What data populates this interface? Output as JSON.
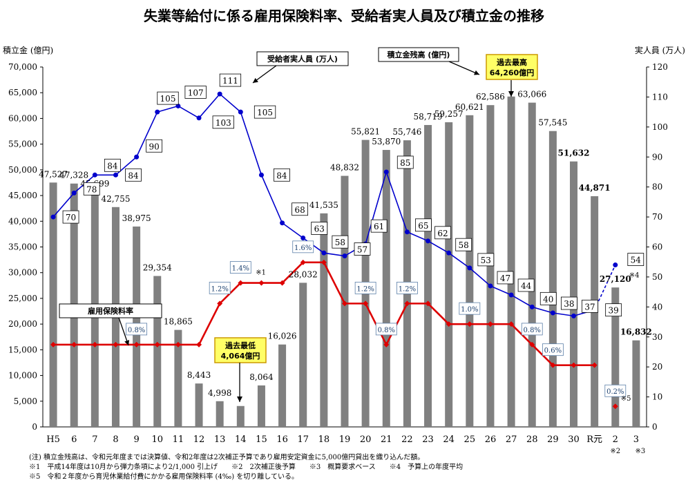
{
  "chart_data": {
    "type": "bar+line",
    "title": "失業等給付に係る雇用保険料率、受給者実人員及び積立金の推移",
    "categories": [
      "H5",
      "6",
      "7",
      "8",
      "9",
      "10",
      "11",
      "12",
      "13",
      "14",
      "15",
      "16",
      "17",
      "18",
      "19",
      "20",
      "21",
      "22",
      "23",
      "24",
      "25",
      "26",
      "27",
      "28",
      "29",
      "30",
      "R元",
      "2",
      "3"
    ],
    "y_left_label": "積立金 (億円)",
    "y_right_label": "実人員 (万人)",
    "y_left_ticks": [
      "0",
      "5,000",
      "10,000",
      "15,000",
      "20,000",
      "25,000",
      "30,000",
      "35,000",
      "40,000",
      "45,000",
      "50,000",
      "55,000",
      "60,000",
      "65,000",
      "70,000"
    ],
    "y_right_ticks": [
      "0",
      "10",
      "20",
      "30",
      "40",
      "50",
      "60",
      "70",
      "80",
      "90",
      "100",
      "110",
      "120"
    ],
    "ylim_left": [
      0,
      70000
    ],
    "ylim_right": [
      0,
      120
    ],
    "bar_values": [
      47527,
      47328,
      45699,
      42755,
      38975,
      29354,
      18865,
      8443,
      4998,
      4064,
      8064,
      16026,
      28032,
      41535,
      48832,
      55821,
      53870,
      55746,
      58719,
      59257,
      60621,
      62586,
      64260,
      63066,
      57545,
      51632,
      44871,
      27120,
      16832
    ],
    "bar_labels": [
      "47,527",
      "47,328",
      "45,699",
      "42,755",
      "38,975",
      "29,354",
      "18,865",
      "8,443",
      "4,998",
      "",
      "8,064",
      "16,026",
      "28,032",
      "41,535",
      "48,832",
      "55,821",
      "53,870",
      "55,746",
      "58,719",
      "59,257",
      "60,621",
      "62,586",
      "",
      "63,066",
      "57,545",
      "51,632",
      "44,871",
      "27,120",
      "16,832"
    ],
    "bar_labels_bold": [
      false,
      false,
      false,
      false,
      false,
      false,
      false,
      false,
      false,
      false,
      false,
      false,
      false,
      false,
      false,
      false,
      false,
      false,
      false,
      false,
      false,
      false,
      false,
      false,
      false,
      true,
      true,
      true,
      true
    ],
    "recipients": [
      70,
      78,
      84,
      84,
      90,
      105,
      107,
      103,
      111,
      105,
      84,
      68,
      63,
      58,
      57,
      61,
      85,
      65,
      62,
      58,
      53,
      47,
      44,
      40,
      38,
      37,
      39,
      54,
      null
    ],
    "recipients_labels": [
      "70",
      "78",
      "84",
      "84",
      "90",
      "105",
      "107",
      "103",
      "111",
      "105",
      "84",
      "68",
      "63",
      "58",
      "57",
      "61",
      "85",
      "65",
      "62",
      "58",
      "53",
      "47",
      "44",
      "40",
      "38",
      "37",
      "39",
      "54",
      ""
    ],
    "rate_values": [
      0.8,
      0.8,
      0.8,
      0.8,
      0.8,
      0.8,
      0.8,
      0.8,
      1.2,
      1.4,
      1.4,
      1.4,
      1.6,
      1.6,
      1.2,
      1.2,
      0.8,
      1.2,
      1.2,
      1.0,
      1.0,
      1.0,
      1.0,
      0.8,
      0.6,
      0.6,
      0.6,
      0.2,
      null
    ],
    "rate_labels": [
      {
        "index": 4,
        "text": "0.8%"
      },
      {
        "index": 8,
        "text": "1.2%"
      },
      {
        "index": 9,
        "text": "1.4%"
      },
      {
        "index": 12,
        "text": "1.6%"
      },
      {
        "index": 15,
        "text": "1.2%"
      },
      {
        "index": 16,
        "text": "0.8%"
      },
      {
        "index": 17,
        "text": "1.2%"
      },
      {
        "index": 20,
        "text": "1.0%"
      },
      {
        "index": 23,
        "text": "0.8%"
      },
      {
        "index": 24,
        "text": "0.6%"
      },
      {
        "index": 27,
        "text": "0.2%"
      }
    ],
    "legend": {
      "recipients": "受給者実人員 (万人)",
      "reserve": "積立金残高 (億円)",
      "rate": "雇用保険料率"
    },
    "callout_high": {
      "line1": "過去最高",
      "line2": "64,260億円"
    },
    "callout_low": {
      "line1": "過去最低",
      "line2": "4,064億円"
    },
    "marks": {
      "m1": "※1",
      "m4": "※4",
      "m5": "※5",
      "x2": "※2",
      "x3": "※3"
    },
    "colors": {
      "bar": "#808080",
      "recipients": "#0000CC",
      "rate": "#DD0000",
      "callout_bg": "#FFFF66",
      "callout_border": "#CC9900",
      "box_border": "#5B7FA8"
    }
  },
  "notes": {
    "n1": "(注) 積立金残高は、令和元年度までは決算値、令和2年度は2次補正予算であり雇用安定資金に5,000億円貸出を織り込んだ額。",
    "n2": "※1　平成14年度は10月から弾力条項により2/1,000 引上げ　　※2　2次補正後予算　　※3　概算要求ベース　　※4　予算上の年度平均",
    "n3": "※5　令和２年度から育児休業給付費にかかる雇用保険料率 (4‰) を切り離している。"
  }
}
